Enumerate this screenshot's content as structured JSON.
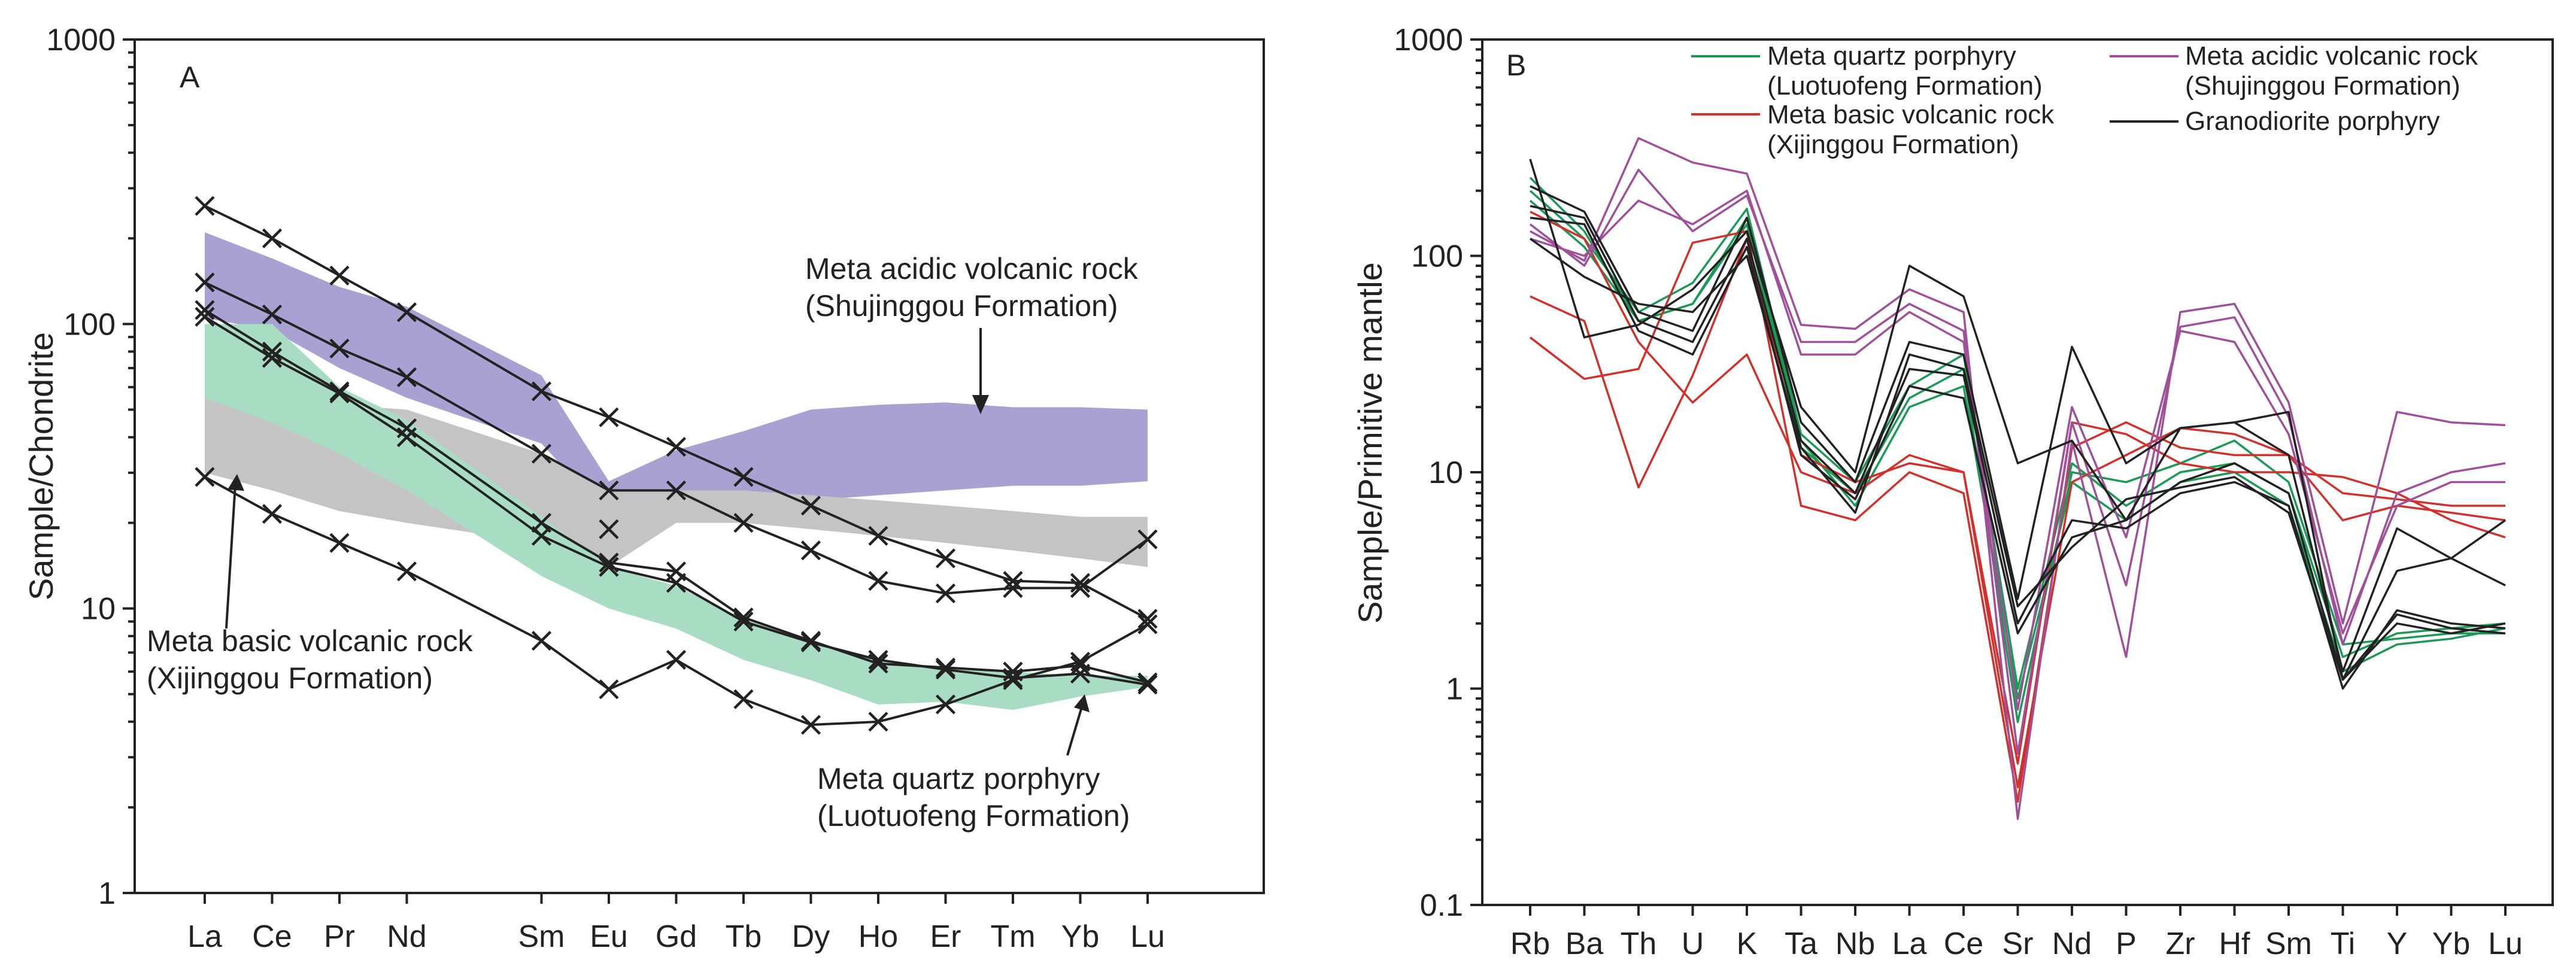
{
  "chart_data": [
    {
      "panel": "A",
      "type": "line",
      "scale": "log",
      "ylabel": "Sample/Chondrite",
      "xlabel": "",
      "ylim": [
        1,
        1000
      ],
      "yticks": [
        "1",
        "10",
        "100",
        "1000"
      ],
      "ytick_values": [
        1,
        10,
        100,
        1000
      ],
      "categories": [
        "La",
        "Ce",
        "Pr",
        "Nd",
        "Sm",
        "Eu",
        "Gd",
        "Tb",
        "Dy",
        "Ho",
        "Er",
        "Tm",
        "Yb",
        "Lu"
      ],
      "category_positions": [
        0,
        1,
        2,
        3,
        5,
        6,
        7,
        8,
        9,
        10,
        11,
        12,
        13,
        14
      ],
      "fields": [
        {
          "name": "Meta acidic volcanic rock (Shujinggou Formation)",
          "color": "#a8a2d3",
          "upper": [
            210,
            170,
            135,
            115,
            66,
            28,
            36,
            42,
            50,
            52,
            53,
            51,
            51,
            50
          ],
          "lower": [
            105,
            95,
            70,
            55,
            38,
            21,
            24,
            24,
            24,
            25,
            26,
            27,
            27,
            28
          ]
        },
        {
          "name": "Meta basic volcanic rock (Xijinggou Formation)",
          "color": "#c4c4c4",
          "upper": [
            60,
            55,
            52,
            50,
            35,
            26,
            26,
            26,
            25,
            24,
            23,
            22,
            21,
            21
          ],
          "lower": [
            30,
            26,
            22,
            20,
            17,
            14,
            20,
            20,
            19,
            18,
            17,
            16,
            15,
            14
          ]
        },
        {
          "name": "Meta quartz porphyry (Luotuofeng Formation)",
          "color": "#a8ddc3",
          "upper": [
            100,
            100,
            60,
            46,
            21,
            14,
            12,
            9.2,
            7.7,
            6.5,
            6.2,
            6.0,
            5.8,
            5.8
          ],
          "lower": [
            55,
            45,
            35,
            26,
            13,
            10,
            8.5,
            6.6,
            5.6,
            4.6,
            4.7,
            4.4,
            4.9,
            5.3
          ]
        }
      ],
      "series": [
        {
          "name": "sample-1",
          "values": [
            260,
            200,
            148,
            110,
            58,
            47,
            37,
            29,
            23,
            18,
            15,
            12.5,
            12.3,
            9.2
          ]
        },
        {
          "name": "sample-2",
          "values": [
            140,
            108,
            82,
            65,
            35,
            26,
            26,
            20,
            16,
            12.5,
            11.3,
            11.8,
            11.8,
            17.5
          ]
        },
        {
          "name": "sample-3",
          "values": [
            112,
            80,
            58,
            43,
            20,
            14.5,
            13.5,
            9.3,
            7.7,
            6.4,
            6.2,
            6.0,
            6.3,
            5.5
          ]
        },
        {
          "name": "sample-4",
          "values": [
            106,
            76,
            57,
            40,
            18,
            14,
            12.3,
            9.0,
            7.6,
            6.6,
            6.1,
            5.7,
            5.9,
            5.4
          ]
        },
        {
          "name": "sample-5",
          "values": [
            29,
            21.5,
            17,
            13.5,
            7.7,
            5.2,
            6.6,
            4.8,
            3.9,
            4.0,
            4.6,
            5.6,
            6.5,
            8.8
          ]
        }
      ],
      "isolated_points": [
        {
          "category": "Eu",
          "value": 19
        }
      ],
      "annotations": {
        "acidic_line1": "Meta acidic volcanic rock",
        "acidic_line2": "(Shujinggou Formation)",
        "basic_line1": "Meta basic volcanic rock",
        "basic_line2": "(Xijinggou Formation)",
        "quartz_line1": "Meta quartz porphyry",
        "quartz_line2": "(Luotuofeng Formation)"
      }
    },
    {
      "panel": "B",
      "type": "line",
      "scale": "log",
      "ylabel": "Sample/Primitive mantle",
      "xlabel": "",
      "ylim": [
        0.1,
        1000
      ],
      "yticks": [
        "0.1",
        "1",
        "10",
        "100",
        "1000"
      ],
      "ytick_values": [
        0.1,
        1,
        10,
        100,
        1000
      ],
      "categories": [
        "Rb",
        "Ba",
        "Th",
        "U",
        "K",
        "Ta",
        "Nb",
        "La",
        "Ce",
        "Sr",
        "Nd",
        "P",
        "Zr",
        "Hf",
        "Sm",
        "Ti",
        "Y",
        "Yb",
        "Lu"
      ],
      "legend": [
        {
          "line1": "Meta quartz porphyry",
          "line2": "(Luotuofeng Formation)",
          "color": "#1a9a55"
        },
        {
          "line1": "Meta basic volcanic rock",
          "line2": "(Xijinggou Formation)",
          "color": "#d3302c"
        },
        {
          "line1": "Meta acidic volcanic rock",
          "line2": "(Shujinggou Formation)",
          "color": "#a0509a"
        },
        {
          "line1": "Granodiorite porphyry",
          "line2": "",
          "color": "#222222"
        }
      ],
      "series": [
        {
          "group": "Meta quartz porphyry (Luotuofeng Formation)",
          "color": "#1a9a55",
          "values": [
            230,
            130,
            50,
            60,
            150,
            14,
            7,
            20,
            25,
            0.9,
            9,
            6,
            9,
            10,
            7,
            1.2,
            1.6,
            1.7,
            1.9
          ]
        },
        {
          "group": "Meta quartz porphyry (Luotuofeng Formation)",
          "color": "#1a9a55",
          "values": [
            200,
            120,
            55,
            75,
            165,
            15,
            9,
            25,
            35,
            1.0,
            11,
            7,
            10,
            11,
            8,
            1.4,
            1.8,
            1.9,
            2.0
          ]
        },
        {
          "group": "Meta quartz porphyry (Luotuofeng Formation)",
          "color": "#1a9a55",
          "values": [
            180,
            110,
            50,
            60,
            140,
            13,
            8,
            22,
            30,
            0.7,
            10,
            9,
            11,
            14,
            9,
            1.6,
            1.7,
            1.8,
            1.8
          ]
        },
        {
          "group": "Meta basic volcanic rock (Xijinggou Formation)",
          "color": "#d3302c",
          "values": [
            65,
            50,
            8.5,
            28,
            120,
            12,
            9,
            11,
            10,
            0.35,
            9,
            12,
            16,
            15,
            12,
            8,
            7.5,
            7,
            7
          ]
        },
        {
          "group": "Meta basic volcanic rock (Xijinggou Formation)",
          "color": "#d3302c",
          "values": [
            42,
            27,
            30,
            115,
            130,
            7,
            6,
            10,
            8,
            0.3,
            13,
            17,
            13,
            12,
            12,
            6,
            7,
            6.5,
            6
          ]
        },
        {
          "group": "Meta basic volcanic rock (Xijinggou Formation)",
          "color": "#d3302c",
          "values": [
            160,
            120,
            40,
            21,
            35,
            10,
            8,
            12,
            10,
            0.45,
            17,
            15,
            11,
            10,
            10,
            9.5,
            8,
            6,
            5
          ]
        },
        {
          "group": "Meta acidic volcanic rock (Shujinggou Formation)",
          "color": "#a0509a",
          "values": [
            130,
            95,
            350,
            270,
            240,
            48,
            46,
            70,
            55,
            0.25,
            14,
            1.4,
            55,
            60,
            21,
            2.0,
            19,
            17,
            16.5
          ]
        },
        {
          "group": "Meta acidic volcanic rock (Shujinggou Formation)",
          "color": "#a0509a",
          "values": [
            140,
            90,
            250,
            130,
            190,
            40,
            40,
            60,
            45,
            0.5,
            17,
            3,
            47,
            52,
            18,
            1.6,
            8,
            10,
            11
          ]
        },
        {
          "group": "Meta acidic volcanic rock (Shujinggou Formation)",
          "color": "#a0509a",
          "values": [
            120,
            100,
            180,
            140,
            200,
            35,
            35,
            55,
            40,
            0.8,
            20,
            5,
            45,
            40,
            15,
            1.8,
            7,
            9,
            9
          ]
        },
        {
          "group": "Granodiorite porphyry",
          "color": "#222222",
          "values": [
            280,
            42,
            48,
            70,
            130,
            20,
            10,
            90,
            65,
            11,
            14,
            6,
            16,
            17,
            12,
            1.2,
            5.5,
            4,
            3
          ]
        },
        {
          "group": "Granodiorite porphyry",
          "color": "#222222",
          "values": [
            210,
            160,
            55,
            45,
            150,
            17,
            9,
            40,
            35,
            2.6,
            38,
            11,
            16,
            17,
            19,
            1.1,
            3.5,
            4,
            6
          ]
        },
        {
          "group": "Granodiorite porphyry",
          "color": "#222222",
          "values": [
            170,
            150,
            50,
            40,
            120,
            14,
            8,
            30,
            28,
            2.0,
            6,
            5.5,
            8,
            9,
            7,
            1.0,
            2.3,
            2,
            1.9
          ]
        },
        {
          "group": "Granodiorite porphyry",
          "color": "#222222",
          "values": [
            150,
            140,
            45,
            35,
            110,
            12,
            7.5,
            25,
            22,
            1.8,
            5,
            6,
            9,
            11,
            8,
            1.1,
            2.0,
            1.8,
            2.0
          ]
        },
        {
          "group": "Granodiorite porphyry",
          "color": "#222222",
          "values": [
            120,
            80,
            60,
            55,
            100,
            13,
            6.5,
            35,
            30,
            2.4,
            4.5,
            7.5,
            8.5,
            9.5,
            6.5,
            1.1,
            2.2,
            1.9,
            1.8
          ]
        }
      ]
    }
  ]
}
